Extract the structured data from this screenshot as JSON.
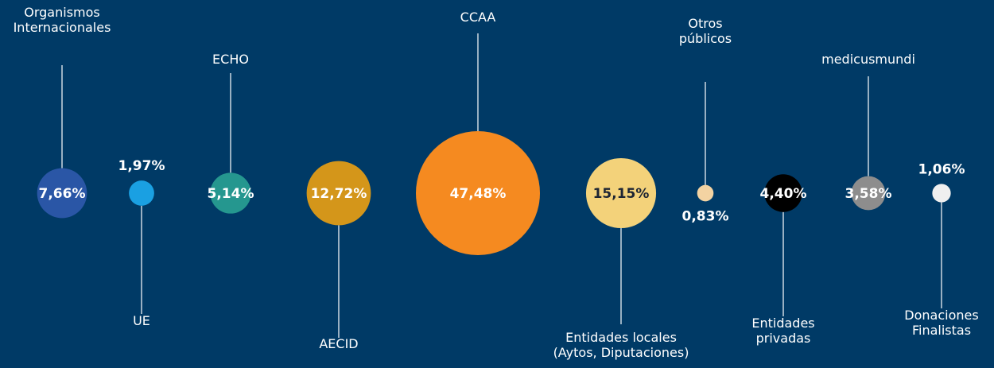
{
  "chart_data": {
    "type": "bubble",
    "categories": [
      "Organismos\nInternacionales",
      "UE",
      "ECHO",
      "AECID",
      "CCAA",
      "Entidades locales\n(Aytos, Diputaciones)",
      "Otros\npúblicos",
      "Entidades\nprivadas",
      "medicusmundi",
      "Donaciones\nFinalistas"
    ],
    "values": [
      7.66,
      1.97,
      5.14,
      12.72,
      47.48,
      15.15,
      0.83,
      4.4,
      3.58,
      1.06
    ],
    "value_labels": [
      "7,66%",
      "1,97%",
      "5,14%",
      "12,72%",
      "47,48%",
      "15,15%",
      "0,83%",
      "4,40%",
      "3,58%",
      "1,06%"
    ],
    "colors": [
      "#2a56a6",
      "#1aa0e2",
      "#25978f",
      "#d4961a",
      "#f58a20",
      "#f3d27a",
      "#f3d3a2",
      "#000000",
      "#8d8d8d",
      "#efefef"
    ]
  }
}
